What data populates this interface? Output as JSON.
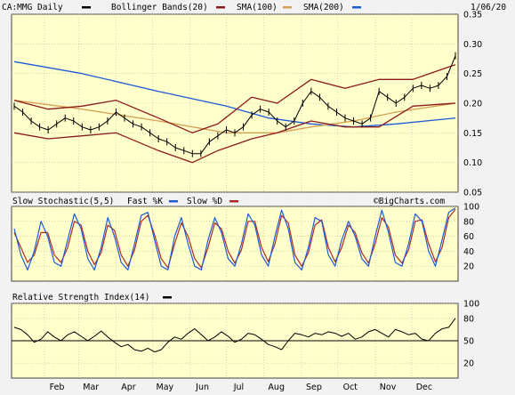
{
  "chart_data": [
    {
      "type": "line",
      "panel": "price",
      "symbol_label": "CA:MMG Daily",
      "date_label": "1/06/20",
      "watermark": "©BigCharts.com",
      "legend": [
        "Bollinger Bands(20)",
        "SMA(100)",
        "SMA(200)"
      ],
      "colors": {
        "price": "#000000",
        "bollinger": "#8b1a1a",
        "sma100": "#d4a055",
        "sma200": "#1e5bd8"
      },
      "ylim": [
        0.05,
        0.35
      ],
      "yticks": [
        "0.35",
        "0.30",
        "0.25",
        "0.20",
        "0.15",
        "0.10",
        "0.05"
      ],
      "grid": true,
      "x_months": [
        "Feb",
        "Mar",
        "Apr",
        "May",
        "Jun",
        "Jul",
        "Aug",
        "Sep",
        "Oct",
        "Nov",
        "Dec"
      ],
      "price_points": [
        [
          "2019-01-07",
          0.195
        ],
        [
          "2019-01-14",
          0.185
        ],
        [
          "2019-01-21",
          0.17
        ],
        [
          "2019-01-28",
          0.16
        ],
        [
          "2019-02-04",
          0.155
        ],
        [
          "2019-02-11",
          0.165
        ],
        [
          "2019-02-18",
          0.175
        ],
        [
          "2019-02-25",
          0.17
        ],
        [
          "2019-03-04",
          0.16
        ],
        [
          "2019-03-11",
          0.155
        ],
        [
          "2019-03-18",
          0.16
        ],
        [
          "2019-03-25",
          0.17
        ],
        [
          "2019-04-01",
          0.185
        ],
        [
          "2019-04-08",
          0.175
        ],
        [
          "2019-04-15",
          0.165
        ],
        [
          "2019-04-22",
          0.16
        ],
        [
          "2019-04-29",
          0.15
        ],
        [
          "2019-05-06",
          0.14
        ],
        [
          "2019-05-13",
          0.135
        ],
        [
          "2019-05-20",
          0.125
        ],
        [
          "2019-05-27",
          0.12
        ],
        [
          "2019-06-03",
          0.115
        ],
        [
          "2019-06-10",
          0.115
        ],
        [
          "2019-06-17",
          0.135
        ],
        [
          "2019-06-24",
          0.145
        ],
        [
          "2019-07-01",
          0.155
        ],
        [
          "2019-07-08",
          0.15
        ],
        [
          "2019-07-15",
          0.16
        ],
        [
          "2019-07-22",
          0.18
        ],
        [
          "2019-07-29",
          0.19
        ],
        [
          "2019-08-05",
          0.185
        ],
        [
          "2019-08-12",
          0.17
        ],
        [
          "2019-08-19",
          0.16
        ],
        [
          "2019-08-26",
          0.17
        ],
        [
          "2019-09-02",
          0.2
        ],
        [
          "2019-09-09",
          0.22
        ],
        [
          "2019-09-16",
          0.21
        ],
        [
          "2019-09-23",
          0.195
        ],
        [
          "2019-09-30",
          0.185
        ],
        [
          "2019-10-07",
          0.175
        ],
        [
          "2019-10-14",
          0.17
        ],
        [
          "2019-10-21",
          0.165
        ],
        [
          "2019-10-28",
          0.175
        ],
        [
          "2019-11-04",
          0.22
        ],
        [
          "2019-11-11",
          0.21
        ],
        [
          "2019-11-18",
          0.2
        ],
        [
          "2019-11-25",
          0.21
        ],
        [
          "2019-12-02",
          0.225
        ],
        [
          "2019-12-09",
          0.23
        ],
        [
          "2019-12-16",
          0.225
        ],
        [
          "2019-12-23",
          0.23
        ],
        [
          "2019-12-30",
          0.245
        ],
        [
          "2020-01-06",
          0.28
        ]
      ],
      "bb_upper": [
        [
          "2019-01-07",
          0.205
        ],
        [
          "2019-02-04",
          0.19
        ],
        [
          "2019-03-04",
          0.195
        ],
        [
          "2019-04-01",
          0.205
        ],
        [
          "2019-05-06",
          0.175
        ],
        [
          "2019-06-03",
          0.15
        ],
        [
          "2019-06-24",
          0.165
        ],
        [
          "2019-07-22",
          0.21
        ],
        [
          "2019-08-12",
          0.2
        ],
        [
          "2019-09-09",
          0.24
        ],
        [
          "2019-10-07",
          0.225
        ],
        [
          "2019-11-04",
          0.24
        ],
        [
          "2019-12-02",
          0.24
        ],
        [
          "2020-01-06",
          0.265
        ]
      ],
      "bb_lower": [
        [
          "2019-01-07",
          0.15
        ],
        [
          "2019-02-04",
          0.14
        ],
        [
          "2019-03-04",
          0.145
        ],
        [
          "2019-04-01",
          0.15
        ],
        [
          "2019-05-06",
          0.12
        ],
        [
          "2019-06-03",
          0.1
        ],
        [
          "2019-06-24",
          0.12
        ],
        [
          "2019-07-22",
          0.14
        ],
        [
          "2019-08-12",
          0.15
        ],
        [
          "2019-09-09",
          0.17
        ],
        [
          "2019-10-07",
          0.16
        ],
        [
          "2019-11-04",
          0.16
        ],
        [
          "2019-12-02",
          0.195
        ],
        [
          "2020-01-06",
          0.2
        ]
      ],
      "sma100": [
        [
          "2019-01-07",
          0.205
        ],
        [
          "2019-03-04",
          0.19
        ],
        [
          "2019-05-06",
          0.17
        ],
        [
          "2019-07-01",
          0.15
        ],
        [
          "2019-08-12",
          0.15
        ],
        [
          "2019-09-09",
          0.16
        ],
        [
          "2019-10-14",
          0.17
        ],
        [
          "2019-11-18",
          0.185
        ],
        [
          "2020-01-06",
          0.2
        ]
      ],
      "sma200": [
        [
          "2019-01-07",
          0.27
        ],
        [
          "2019-03-04",
          0.25
        ],
        [
          "2019-05-06",
          0.22
        ],
        [
          "2019-07-01",
          0.195
        ],
        [
          "2019-08-05",
          0.175
        ],
        [
          "2019-09-09",
          0.165
        ],
        [
          "2019-10-14",
          0.16
        ],
        [
          "2019-11-18",
          0.165
        ],
        [
          "2020-01-06",
          0.175
        ]
      ]
    },
    {
      "type": "line",
      "panel": "stochastic",
      "title": "Slow Stochastic(5,5)",
      "legend": [
        "Fast %K",
        "Slow %D"
      ],
      "colors": {
        "k": "#1e5bd8",
        "d": "#b02a2a"
      },
      "ylim": [
        0,
        100
      ],
      "yticks": [
        "100",
        "80",
        "60",
        "40",
        "20"
      ],
      "k_values": [
        70,
        35,
        15,
        40,
        80,
        60,
        25,
        20,
        55,
        90,
        70,
        30,
        15,
        45,
        85,
        60,
        25,
        15,
        50,
        88,
        92,
        55,
        20,
        15,
        60,
        85,
        50,
        20,
        15,
        55,
        85,
        65,
        30,
        20,
        50,
        90,
        75,
        35,
        20,
        60,
        95,
        70,
        25,
        15,
        45,
        85,
        80,
        35,
        20,
        55,
        80,
        60,
        30,
        20,
        60,
        95,
        65,
        25,
        20,
        50,
        90,
        80,
        40,
        20,
        55,
        92,
        98
      ],
      "d_values": [
        65,
        45,
        25,
        35,
        65,
        65,
        35,
        25,
        45,
        80,
        75,
        40,
        22,
        38,
        75,
        68,
        35,
        20,
        42,
        80,
        88,
        62,
        30,
        18,
        50,
        78,
        60,
        30,
        18,
        45,
        78,
        70,
        40,
        24,
        42,
        80,
        80,
        45,
        26,
        50,
        88,
        78,
        35,
        20,
        38,
        75,
        82,
        45,
        26,
        45,
        75,
        65,
        38,
        24,
        50,
        85,
        72,
        35,
        24,
        42,
        80,
        82,
        50,
        26,
        45,
        85,
        96
      ]
    },
    {
      "type": "line",
      "panel": "rsi",
      "title": "Relative Strength Index(14)",
      "colors": {
        "rsi": "#000000"
      },
      "ylim": [
        0,
        100
      ],
      "yticks": [
        "100",
        "80",
        "50",
        "20"
      ],
      "reference_level": 50,
      "values": [
        68,
        65,
        58,
        48,
        52,
        62,
        55,
        50,
        58,
        62,
        56,
        50,
        56,
        63,
        55,
        48,
        42,
        45,
        38,
        36,
        40,
        35,
        38,
        48,
        55,
        52,
        60,
        66,
        58,
        50,
        55,
        62,
        56,
        48,
        52,
        60,
        58,
        52,
        45,
        42,
        38,
        50,
        60,
        58,
        55,
        60,
        58,
        62,
        60,
        56,
        60,
        52,
        55,
        62,
        65,
        60,
        55,
        65,
        62,
        58,
        60,
        52,
        50,
        60,
        66,
        68,
        80
      ]
    }
  ],
  "x_axis": {
    "months": [
      "Feb",
      "Mar",
      "Apr",
      "May",
      "Jun",
      "Jul",
      "Aug",
      "Sep",
      "Oct",
      "Nov",
      "Dec"
    ]
  }
}
